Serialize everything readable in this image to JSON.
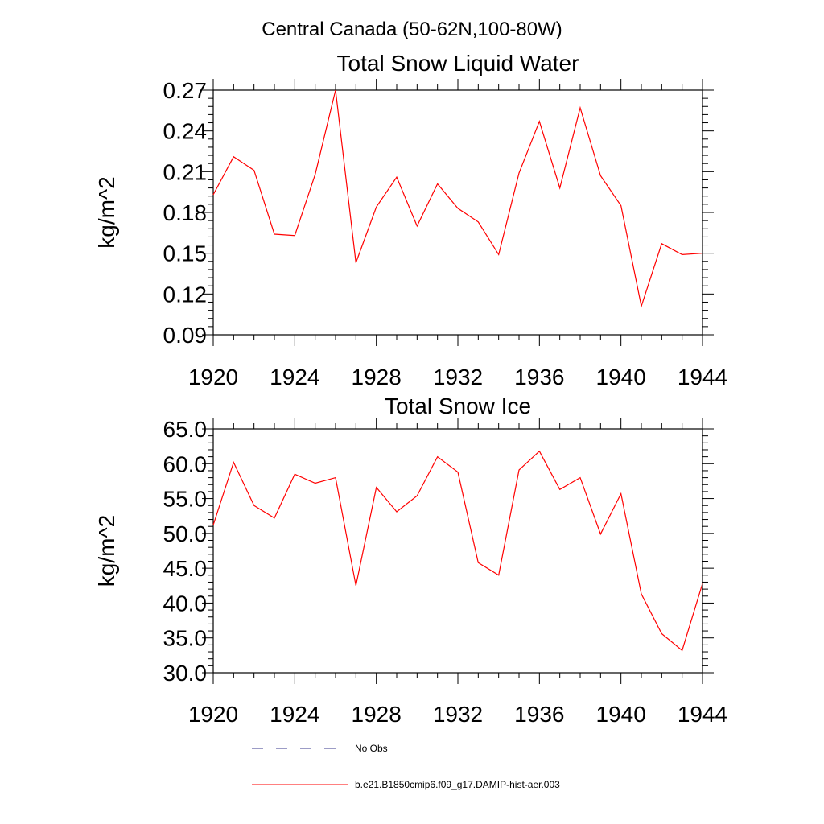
{
  "figure_title": "Central Canada (50-62N,100-80W)",
  "colors": {
    "model": "#ff0000",
    "obs": "#3a3a8c",
    "axis": "#000000"
  },
  "legend": {
    "entries": [
      {
        "label": "No Obs",
        "style": "dashed",
        "color": "#3a3a8c"
      },
      {
        "label": "b.e21.B1850cmip6.f09_g17.DAMIP-hist-aer.003",
        "style": "solid",
        "color": "#ff0000"
      }
    ]
  },
  "chart_data": [
    {
      "type": "line",
      "title": "Total Snow Liquid Water",
      "xlabel": "",
      "ylabel": "kg/m^2",
      "xlim": [
        1920,
        1944
      ],
      "ylim": [
        0.09,
        0.27
      ],
      "xticks": [
        "1920",
        "1924",
        "1928",
        "1932",
        "1936",
        "1940",
        "1944"
      ],
      "yticks": [
        "0.09",
        "0.12",
        "0.15",
        "0.18",
        "0.21",
        "0.24",
        "0.27"
      ],
      "x": [
        1920,
        1921,
        1922,
        1923,
        1924,
        1925,
        1926,
        1927,
        1928,
        1929,
        1930,
        1931,
        1932,
        1933,
        1934,
        1935,
        1936,
        1937,
        1938,
        1939,
        1940,
        1941,
        1942,
        1943,
        1944
      ],
      "series": [
        {
          "name": "b.e21.B1850cmip6.f09_g17.DAMIP-hist-aer.003",
          "values": [
            0.193,
            0.221,
            0.211,
            0.164,
            0.163,
            0.208,
            0.27,
            0.143,
            0.184,
            0.206,
            0.17,
            0.201,
            0.183,
            0.173,
            0.149,
            0.209,
            0.247,
            0.198,
            0.257,
            0.207,
            0.185,
            0.111,
            0.157,
            0.149,
            0.15
          ]
        }
      ]
    },
    {
      "type": "line",
      "title": "Total Snow Ice",
      "xlabel": "",
      "ylabel": "kg/m^2",
      "xlim": [
        1920,
        1944
      ],
      "ylim": [
        30,
        65
      ],
      "xticks": [
        "1920",
        "1924",
        "1928",
        "1932",
        "1936",
        "1940",
        "1944"
      ],
      "yticks": [
        "30.0",
        "35.0",
        "40.0",
        "45.0",
        "50.0",
        "55.0",
        "60.0",
        "65.0"
      ],
      "x": [
        1920,
        1921,
        1922,
        1923,
        1924,
        1925,
        1926,
        1927,
        1928,
        1929,
        1930,
        1931,
        1932,
        1933,
        1934,
        1935,
        1936,
        1937,
        1938,
        1939,
        1940,
        1941,
        1942,
        1943,
        1944
      ],
      "series": [
        {
          "name": "b.e21.B1850cmip6.f09_g17.DAMIP-hist-aer.003",
          "values": [
            51.2,
            60.2,
            54.0,
            52.2,
            58.5,
            57.2,
            58.0,
            42.5,
            56.6,
            53.1,
            55.4,
            61.0,
            58.8,
            45.8,
            44.0,
            59.1,
            61.8,
            56.3,
            58.0,
            49.9,
            55.7,
            41.3,
            35.6,
            33.2,
            42.8
          ]
        }
      ]
    }
  ]
}
